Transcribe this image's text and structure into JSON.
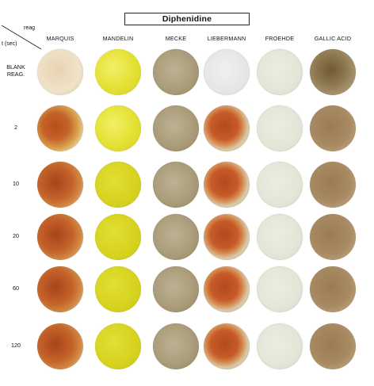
{
  "title": "Diphenidine",
  "corner": {
    "reagent_label": "reag",
    "time_label": "t (sec)"
  },
  "columns": [
    "MARQUIS",
    "MANDELIN",
    "MECKE",
    "LIEBERMANN",
    "FROEHDE",
    "GALLIC ACID"
  ],
  "rows": [
    {
      "label_lines": [
        "BLANK",
        "REAG."
      ]
    },
    {
      "label_lines": [
        "2"
      ]
    },
    {
      "label_lines": [
        "10"
      ]
    },
    {
      "label_lines": [
        "20"
      ]
    },
    {
      "label_lines": [
        "60"
      ]
    },
    {
      "label_lines": [
        "120"
      ]
    }
  ],
  "well_colors": {
    "marquis_blank": "#e9d4b2",
    "marquis_reacted": "#c4622a",
    "marquis_reacted_dark": "#a8441a",
    "mandelin": "#d6d21e",
    "mandelin_light": "#e6e43a",
    "mecke": "#a99b78",
    "liebermann_blank": "#e4e4e2",
    "liebermann_reacted": "#c75a28",
    "liebermann_rim": "#d8c9a8",
    "froehde": "#e4e4d6",
    "gallic_acid_blank": "#8f7a52",
    "gallic_acid": "#a88a62",
    "tray_shadow": "#bdbdbd"
  }
}
